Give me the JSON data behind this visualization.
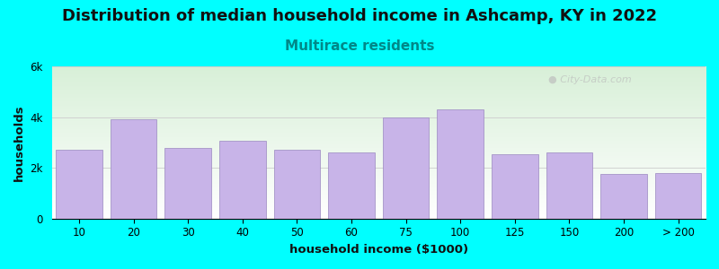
{
  "title": "Distribution of median household income in Ashcamp, KY in 2022",
  "subtitle": "Multirace residents",
  "xlabel": "household income ($1000)",
  "ylabel": "households",
  "background_color": "#00FFFF",
  "plot_bg_top": "#d8f0d8",
  "plot_bg_bottom": "#ffffff",
  "bar_color": "#C8B4E8",
  "bar_edge_color": "#9A88C0",
  "categories": [
    "10",
    "20",
    "30",
    "40",
    "50",
    "60",
    "75",
    "100",
    "125",
    "150",
    "200",
    "> 200"
  ],
  "values": [
    2700,
    3900,
    2800,
    3050,
    2700,
    2600,
    4000,
    4300,
    2550,
    2600,
    1750,
    1800
  ],
  "ylim": [
    0,
    6000
  ],
  "yticks": [
    0,
    2000,
    4000,
    6000
  ],
  "ytick_labels": [
    "0",
    "2k",
    "4k",
    "6k"
  ],
  "title_fontsize": 13,
  "subtitle_fontsize": 11,
  "subtitle_color": "#008888",
  "watermark": "City-Data.com"
}
